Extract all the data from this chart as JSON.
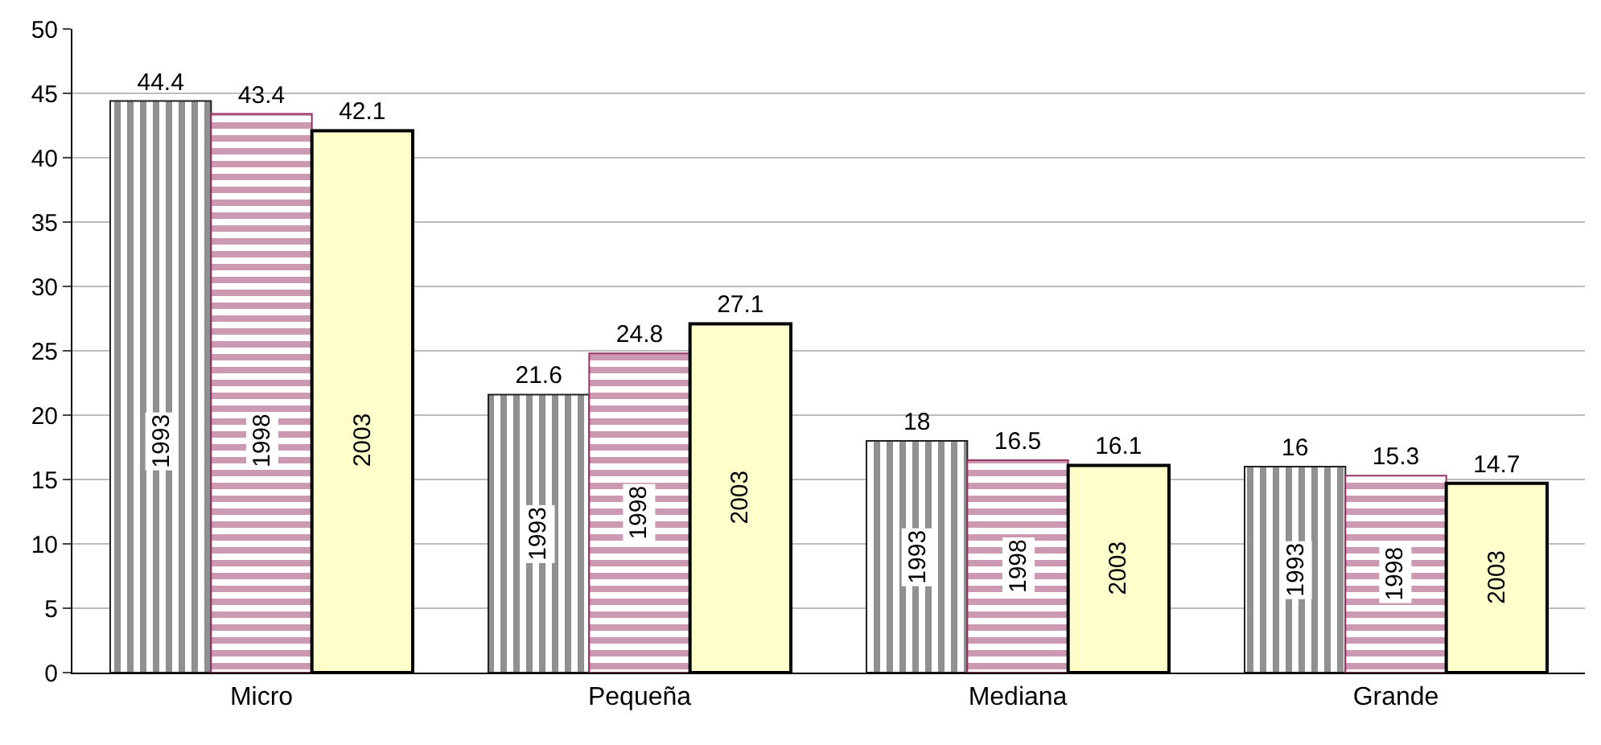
{
  "chart_data": {
    "type": "bar",
    "categories": [
      "Micro",
      "Pequeña",
      "Mediana",
      "Grande"
    ],
    "series": [
      {
        "name": "1993",
        "color": "#222222",
        "values": [
          44.4,
          21.6,
          18,
          16
        ]
      },
      {
        "name": "1998",
        "color": "#993366",
        "values": [
          43.4,
          24.8,
          16.5,
          15.3
        ]
      },
      {
        "name": "2003",
        "color": "#ffffcc",
        "values": [
          42.1,
          27.1,
          16.1,
          14.7
        ]
      }
    ],
    "ylim": [
      0,
      50
    ],
    "yticks": [
      0,
      5,
      10,
      15,
      20,
      25,
      30,
      35,
      40,
      45,
      50
    ],
    "grid": "y",
    "legend": false,
    "data_labels": true
  }
}
